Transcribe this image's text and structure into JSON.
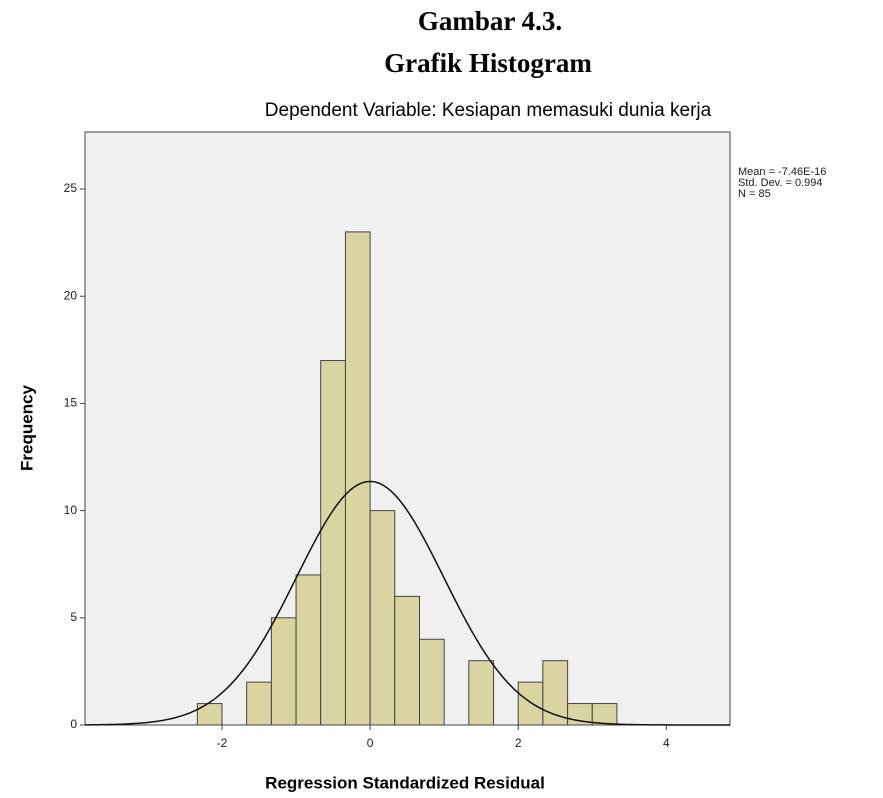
{
  "chart_data": {
    "type": "histogram",
    "heading": "Gambar 4.3.",
    "subheading": "Grafik Histogram",
    "title": "Dependent Variable: Kesiapan memasuki dunia kerja",
    "xlabel": "Regression Standardized Residual",
    "ylabel": "Frequency",
    "bins": [
      -2.333,
      -2,
      -1.667,
      -1.333,
      -1,
      -0.667,
      -0.333,
      0,
      0.333,
      0.667,
      1,
      1.333,
      1.667,
      2,
      2.333,
      2.667,
      3,
      3.333
    ],
    "values": [
      1,
      0,
      2,
      5,
      7,
      17,
      23,
      10,
      6,
      4,
      0,
      3,
      0,
      2,
      3,
      1,
      1
    ],
    "color": "#d9d4a1",
    "edge_color": "#444444",
    "background": "#f0f0f0",
    "stats": [
      {
        "value": -7.46e-16,
        "label": "Mean = -7.46E-16"
      },
      {
        "value": 0.994,
        "label": "Std. Dev. = 0.994"
      },
      {
        "value": 85,
        "label": "N = 85"
      }
    ],
    "xlim": [
      -3.85,
      4.86
    ],
    "ylim": [
      0,
      27.66
    ],
    "xticks": [
      -2,
      0,
      2,
      4
    ],
    "yticks": [
      0,
      5,
      10,
      15,
      20,
      25
    ],
    "grid": false
  }
}
